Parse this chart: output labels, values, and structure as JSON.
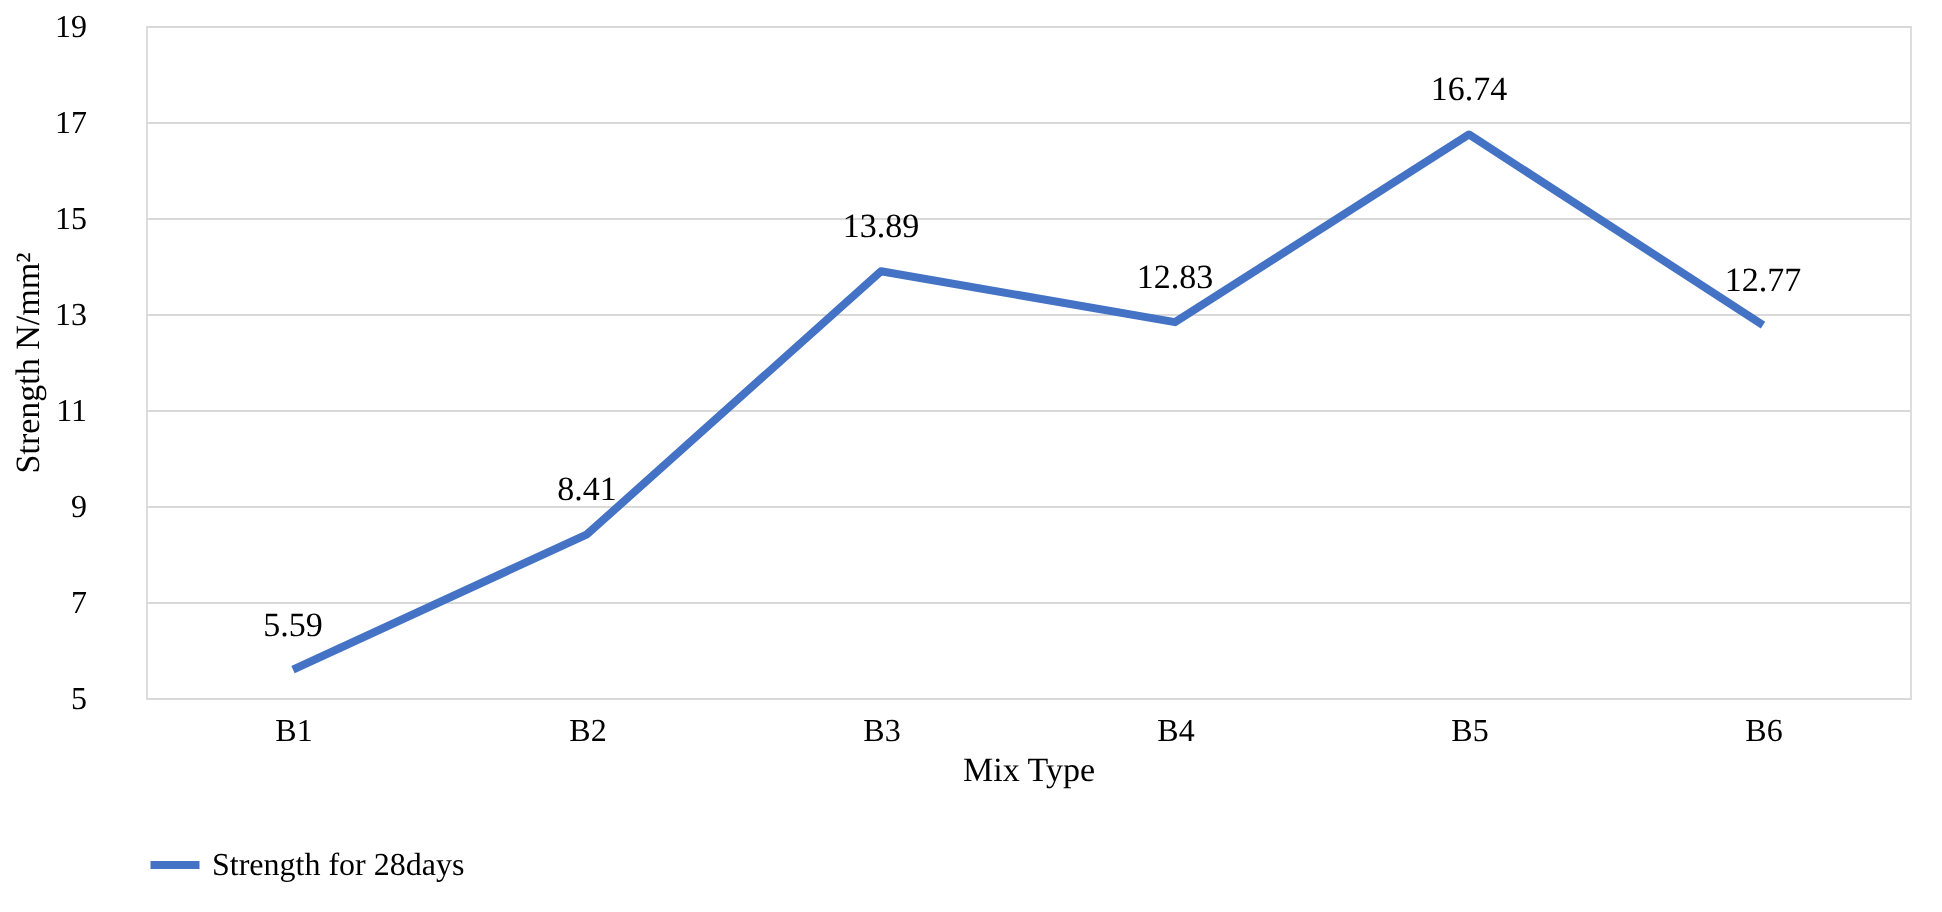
{
  "chart_data": {
    "type": "line",
    "xlabel": "Mix Type",
    "ylabel": "Strength N/mm²",
    "categories": [
      "B1",
      "B2",
      "B3",
      "B4",
      "B5",
      "B6"
    ],
    "series": [
      {
        "name": "Strength for 28days",
        "color": "#4472c4",
        "values": [
          5.59,
          8.41,
          13.89,
          12.83,
          16.74,
          12.77
        ]
      }
    ],
    "ylim": [
      5,
      19
    ],
    "yticks": [
      5,
      7,
      9,
      11,
      13,
      15,
      17,
      19
    ],
    "grid": "y",
    "data_labels": true,
    "legend": "bottom",
    "marker": "none",
    "line_style": "solid"
  }
}
